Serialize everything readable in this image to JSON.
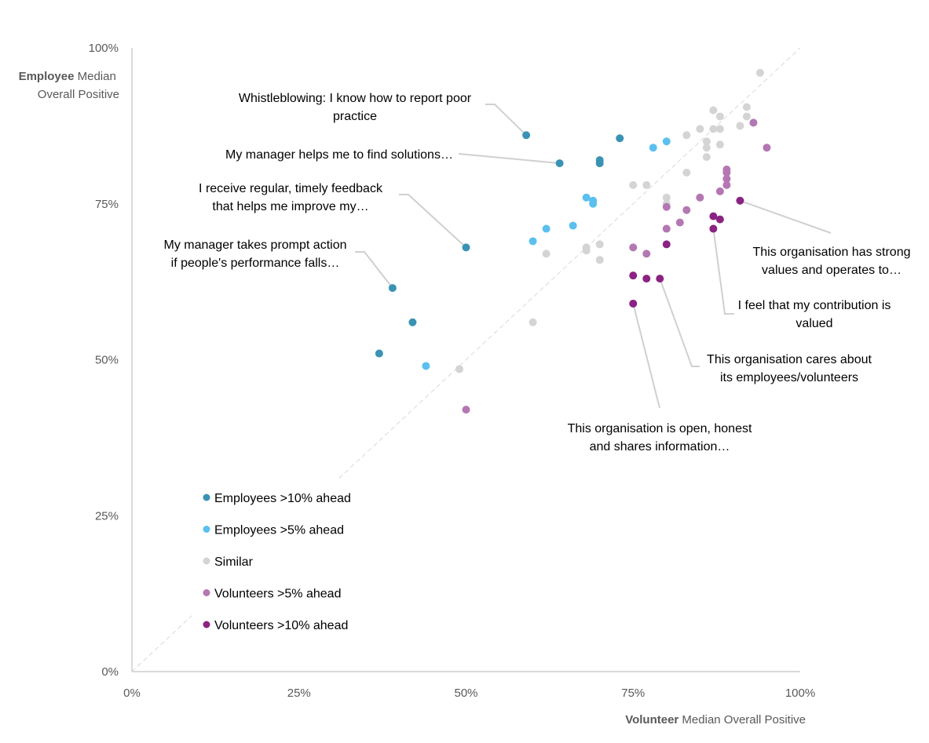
{
  "chart_data": {
    "type": "scatter",
    "title": "",
    "xlabel": {
      "bold": "Volunteer",
      "rest": " Median Overall Positive"
    },
    "ylabel": {
      "bold": "Employee",
      "rest": " Median",
      "line2": "Overall Positive"
    },
    "xlim": [
      0,
      100
    ],
    "ylim": [
      0,
      100
    ],
    "x_ticks": [
      "0%",
      "25%",
      "50%",
      "75%",
      "100%"
    ],
    "y_ticks": [
      "0%",
      "25%",
      "50%",
      "75%",
      "100%"
    ],
    "tick_values": [
      0,
      25,
      50,
      75,
      100
    ],
    "grid": false,
    "reference_line": "y = x (dashed diagonal)",
    "legend_position": "lower-left",
    "series": [
      {
        "name": "Employees >10% ahead",
        "color": "#3a93b5",
        "points": [
          [
            59,
            86
          ],
          [
            64,
            81.5
          ],
          [
            70,
            81.5
          ],
          [
            70,
            82
          ],
          [
            73,
            85.5
          ],
          [
            50,
            68
          ],
          [
            39,
            61.5
          ],
          [
            42,
            56
          ],
          [
            37,
            51
          ]
        ]
      },
      {
        "name": "Employees >5% ahead",
        "color": "#5bc0ee",
        "points": [
          [
            78,
            84
          ],
          [
            80,
            85
          ],
          [
            68,
            76
          ],
          [
            69,
            75.5
          ],
          [
            69,
            75
          ],
          [
            62,
            71
          ],
          [
            66,
            71.5
          ],
          [
            60,
            69
          ],
          [
            44,
            49
          ]
        ]
      },
      {
        "name": "Similar",
        "color": "#d4d4d4",
        "points": [
          [
            94,
            96
          ],
          [
            87,
            90
          ],
          [
            92,
            90.5
          ],
          [
            88,
            89
          ],
          [
            92,
            89
          ],
          [
            83,
            86
          ],
          [
            85,
            87
          ],
          [
            87,
            87
          ],
          [
            88,
            87
          ],
          [
            91,
            87.5
          ],
          [
            86,
            85
          ],
          [
            86,
            84
          ],
          [
            88,
            84.5
          ],
          [
            86,
            82.5
          ],
          [
            83,
            80
          ],
          [
            75,
            78
          ],
          [
            77,
            78
          ],
          [
            80,
            76
          ],
          [
            80,
            75
          ],
          [
            70,
            68.5
          ],
          [
            68,
            68
          ],
          [
            68,
            67.5
          ],
          [
            62,
            67
          ],
          [
            70,
            66
          ],
          [
            60,
            56
          ],
          [
            49,
            48.5
          ]
        ]
      },
      {
        "name": "Volunteers >5% ahead",
        "color": "#b477b3",
        "points": [
          [
            93,
            88
          ],
          [
            95,
            84
          ],
          [
            89,
            80.5
          ],
          [
            89,
            80
          ],
          [
            89,
            79
          ],
          [
            89,
            78
          ],
          [
            88,
            77
          ],
          [
            85,
            76
          ],
          [
            80,
            74.5
          ],
          [
            83,
            74
          ],
          [
            82,
            72
          ],
          [
            80,
            71
          ],
          [
            75,
            68
          ],
          [
            77,
            67
          ],
          [
            50,
            42
          ]
        ]
      },
      {
        "name": "Volunteers >10% ahead",
        "color": "#8b2382",
        "points": [
          [
            91,
            75.5
          ],
          [
            87,
            73
          ],
          [
            88,
            72.5
          ],
          [
            87,
            71
          ],
          [
            80,
            68.5
          ],
          [
            75,
            63.5
          ],
          [
            77,
            63
          ],
          [
            79,
            63
          ],
          [
            75,
            59
          ]
        ]
      }
    ],
    "annotations": [
      {
        "lines": [
          "Whistleblowing: I know how to report poor",
          "practice"
        ],
        "point": [
          59,
          86
        ]
      },
      {
        "lines": [
          "My manager helps me to find solutions…"
        ],
        "point": [
          64,
          81.5
        ]
      },
      {
        "lines": [
          "I receive regular, timely feedback",
          "that helps me improve my…"
        ],
        "point": [
          50,
          68
        ]
      },
      {
        "lines": [
          "My manager takes prompt action",
          "if people's performance falls…"
        ],
        "point": [
          39,
          61.5
        ]
      },
      {
        "lines": [
          "This organisation has strong",
          "values and operates to…"
        ],
        "point": [
          91,
          75.5
        ]
      },
      {
        "lines": [
          "I feel that my contribution is",
          "valued"
        ],
        "point": [
          87,
          71
        ]
      },
      {
        "lines": [
          "This organisation cares about",
          "its employees/volunteers"
        ],
        "point": [
          79,
          63
        ]
      },
      {
        "lines": [
          "This organisation is open, honest",
          "and shares information…"
        ],
        "point": [
          75,
          59
        ]
      }
    ]
  }
}
